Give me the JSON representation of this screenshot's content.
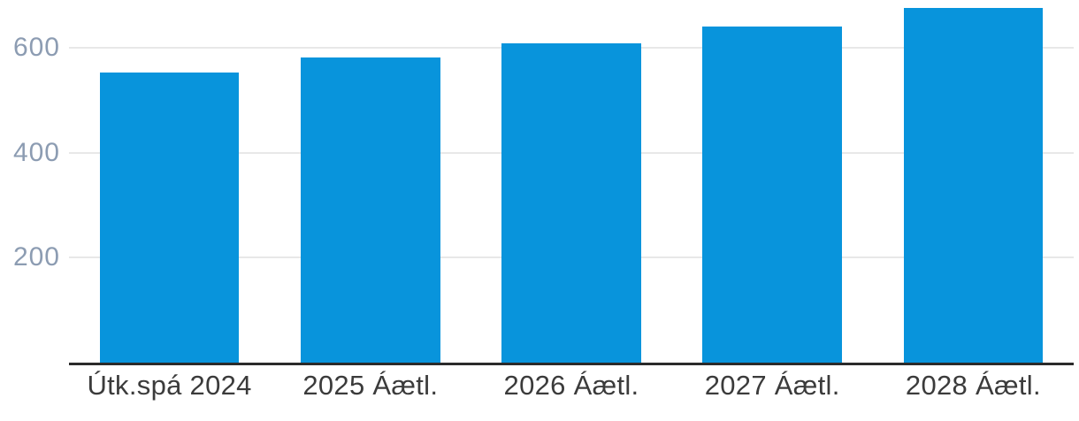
{
  "chart_data": {
    "type": "bar",
    "title": "",
    "categories": [
      "Útk.spá 2024",
      "2025 Áætl.",
      "2026 Áætl.",
      "2027 Áætl.",
      "2028 Áætl."
    ],
    "values": [
      552,
      582,
      608,
      640,
      676
    ],
    "yticks": [
      200,
      400,
      600
    ],
    "ylim": [
      0,
      691
    ],
    "xlabel": "",
    "ylabel": "",
    "legend_position": "none",
    "grid": "horizontal",
    "colors": {
      "bar": "#0894DC",
      "gridline": "#E8E8E8",
      "axis_line": "#2B2B2B",
      "ytick_label": "#8C9CB2",
      "xtick_label": "#3B3B3B",
      "background": "#FFFFFF"
    }
  }
}
